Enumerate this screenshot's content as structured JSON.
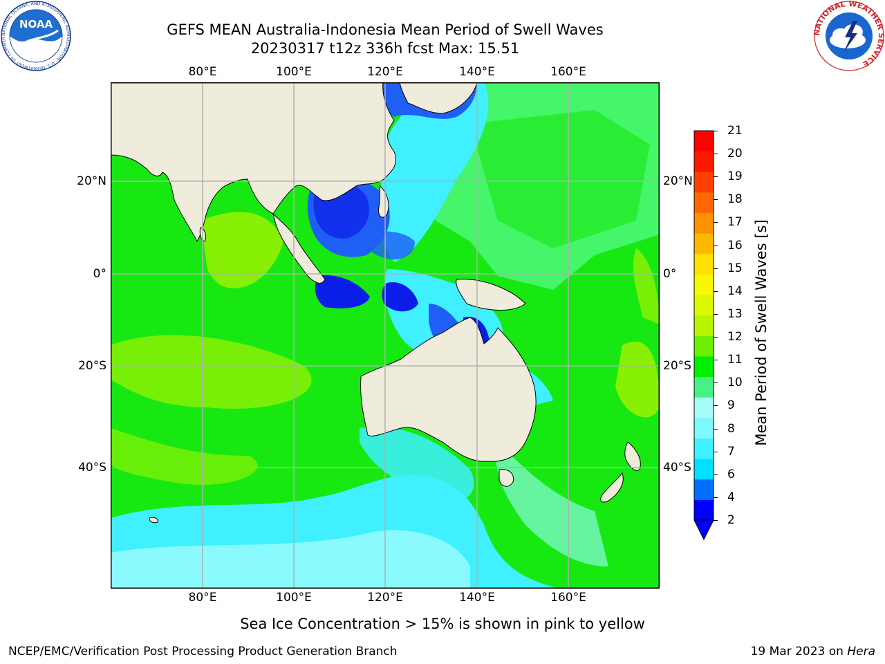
{
  "header": {
    "title_line1": "GEFS MEAN Australia-Indonesia Mean Period of Swell Waves",
    "title_line2": "20230317 t12z 336h fcst   Max: 15.51"
  },
  "logos": {
    "noaa_text": "NOAA",
    "noaa_ring_text": "NATIONAL OCEANIC AND ATMOSPHERIC ADMINISTRATION · U.S. DEPARTMENT OF COMMERCE",
    "nws_ring_text": "NATIONAL WEATHER SERVICE"
  },
  "map": {
    "lon_ticks": [
      "80°E",
      "100°E",
      "120°E",
      "140°E",
      "160°E"
    ],
    "lat_ticks": [
      "20°N",
      "0°",
      "20°S",
      "40°S"
    ],
    "colors": {
      "land": "#efecdc",
      "grid": "#b0b0b0",
      "deep_blue": "#0b1ee8",
      "blue": "#1f5ff5",
      "cyan": "#40f0ff",
      "light_cyan": "#9cfcff",
      "teal_green": "#4ef77a",
      "green": "#17e812",
      "yellow_green": "#b8f400"
    }
  },
  "colorbar": {
    "label": "Mean Period of Swell Waves [s]",
    "ticks": [
      "2",
      "4",
      "6",
      "7",
      "8",
      "9",
      "10",
      "11",
      "12",
      "13",
      "14",
      "15",
      "16",
      "17",
      "18",
      "19",
      "20",
      "21"
    ],
    "bands": [
      "#0000ff",
      "#0070ff",
      "#00e0ff",
      "#40f0ff",
      "#7cf8ff",
      "#a8fcf8",
      "#48f088",
      "#00ee00",
      "#6cf000",
      "#b8f400",
      "#dcf800",
      "#f8f800",
      "#ffe000",
      "#ffb800",
      "#ff9000",
      "#ff6800",
      "#ff4000",
      "#ff1800",
      "#ff0000"
    ]
  },
  "footer": {
    "note": "Sea Ice Concentration > 15% is shown in pink to yellow",
    "left": "NCEP/EMC/Verification Post Processing Product Generation Branch",
    "right_prefix": "19 Mar 2023 on ",
    "right_machine": "Hera"
  }
}
